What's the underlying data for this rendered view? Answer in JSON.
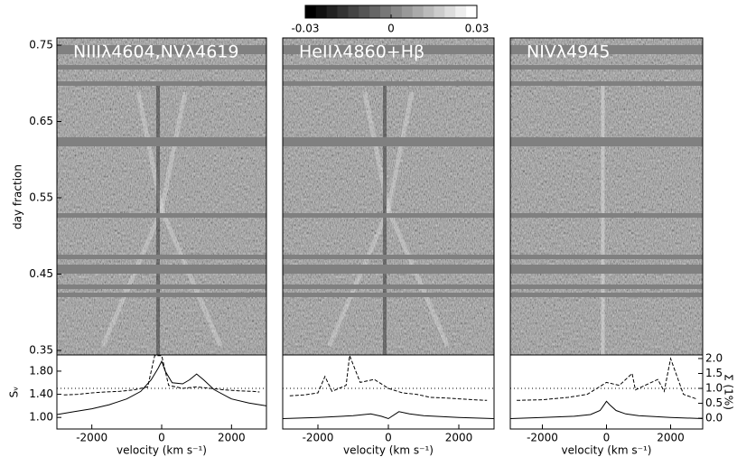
{
  "chart_data": [
    {
      "type": "colorbar",
      "xlim": [
        -0.03,
        0.03
      ],
      "xticks": [
        -0.03,
        0,
        0.03
      ]
    },
    {
      "type": "line",
      "title": "NIIIλ4604,NVλ4619",
      "image_ylabel": "day fraction",
      "image_ylim": [
        0.344,
        0.7595
      ],
      "image_yticks": [
        0.35,
        0.45,
        0.55,
        0.65,
        0.75
      ],
      "xlabel": "velocity (km s⁻¹)",
      "ylabel": "Sᵥ",
      "xlim": [
        -3000,
        3000
      ],
      "xticks": [
        -2000,
        0,
        2000
      ],
      "ylim": [
        0.8,
        2.08
      ],
      "yticks": [
        {
          "value": 1,
          "label": "1.00"
        },
        {
          "value": 1.4,
          "label": "1.40"
        },
        {
          "value": 1.8,
          "label": "1.80"
        }
      ],
      "y2lim": [
        -0.36,
        2.12
      ],
      "hline": 1,
      "series": [
        {
          "color": "#000000",
          "style": "solid",
          "x": [
            -3000,
            -2500,
            -2000,
            -1500,
            -1000,
            -600,
            -300,
            -100,
            0,
            100,
            300,
            600,
            800,
            1000,
            1200,
            1500,
            2000,
            2500,
            3000
          ],
          "values": [
            1.05,
            1.1,
            1.15,
            1.22,
            1.32,
            1.45,
            1.65,
            1.85,
            1.97,
            1.8,
            1.6,
            1.58,
            1.65,
            1.75,
            1.65,
            1.48,
            1.32,
            1.25,
            1.2
          ]
        },
        {
          "color": "#000000",
          "style": "dashed",
          "axis": "y2",
          "x": [
            -2800,
            -2400,
            -2000,
            -1600,
            -1200,
            -800,
            -400,
            -200,
            0,
            200,
            600,
            1000,
            1400,
            1800,
            2200,
            2600,
            2800
          ],
          "values": [
            0.78,
            0.8,
            0.85,
            0.88,
            0.9,
            0.95,
            1.05,
            2.1,
            2.1,
            1.1,
            1.0,
            1.05,
            1.0,
            0.95,
            0.92,
            0.9,
            0.88
          ]
        }
      ]
    },
    {
      "type": "line",
      "title": "HeIIλ4860+Hβ",
      "image_ylim": [
        0.344,
        0.7595
      ],
      "xlabel": "velocity (km s⁻¹)",
      "xlim": [
        -3000,
        3000
      ],
      "xticks": [
        -2000,
        0,
        2000
      ],
      "ylim": [
        0.8,
        2.08
      ],
      "y2lim": [
        -0.36,
        2.12
      ],
      "hline": 1,
      "series": [
        {
          "color": "#000000",
          "style": "solid",
          "x": [
            -3000,
            -2000,
            -1000,
            -500,
            -200,
            0,
            300,
            600,
            1000,
            2000,
            3000
          ],
          "values": [
            0.98,
            1.0,
            1.03,
            1.06,
            1.02,
            0.98,
            1.1,
            1.06,
            1.03,
            1.0,
            0.98
          ]
        },
        {
          "color": "#000000",
          "style": "dashed",
          "axis": "y2",
          "x": [
            -2800,
            -2400,
            -2000,
            -1800,
            -1600,
            -1200,
            -1100,
            -800,
            -400,
            0,
            400,
            800,
            1200,
            1600,
            2000,
            2400,
            2800
          ],
          "values": [
            0.75,
            0.78,
            0.85,
            1.4,
            0.9,
            1.1,
            2.1,
            1.2,
            1.3,
            1.0,
            0.85,
            0.8,
            0.7,
            0.68,
            0.65,
            0.62,
            0.6
          ]
        }
      ]
    },
    {
      "type": "line",
      "title": "NIVλ4945",
      "image_ylim": [
        0.344,
        0.7595
      ],
      "xlabel": "velocity (km s⁻¹)",
      "xlim": [
        -3000,
        3000
      ],
      "xticks": [
        -2000,
        0,
        2000
      ],
      "ylim": [
        0.8,
        2.08
      ],
      "y2lim": [
        -0.36,
        2.12
      ],
      "y2label": "Σ (1%)",
      "y2ticks": [
        {
          "value": 0,
          "label": "0.0"
        },
        0.5,
        {
          "value": 1,
          "label": "1.0"
        },
        1.5,
        {
          "value": 2,
          "label": "2.0"
        }
      ],
      "hline": 1,
      "series": [
        {
          "color": "#000000",
          "style": "solid",
          "x": [
            -3000,
            -2000,
            -1000,
            -500,
            -200,
            -100,
            0,
            100,
            300,
            600,
            1000,
            2000,
            3000
          ],
          "values": [
            0.98,
            1.0,
            1.02,
            1.05,
            1.12,
            1.2,
            1.28,
            1.22,
            1.12,
            1.06,
            1.03,
            1.0,
            0.98
          ]
        },
        {
          "color": "#000000",
          "style": "dashed",
          "axis": "y2",
          "x": [
            -2800,
            -2000,
            -1200,
            -600,
            -300,
            0,
            400,
            800,
            900,
            1200,
            1600,
            1800,
            2000,
            2400,
            2800
          ],
          "values": [
            0.6,
            0.62,
            0.7,
            0.8,
            1.0,
            1.2,
            1.1,
            1.5,
            0.95,
            1.1,
            1.3,
            0.9,
            2.0,
            0.8,
            0.65
          ]
        }
      ]
    }
  ]
}
